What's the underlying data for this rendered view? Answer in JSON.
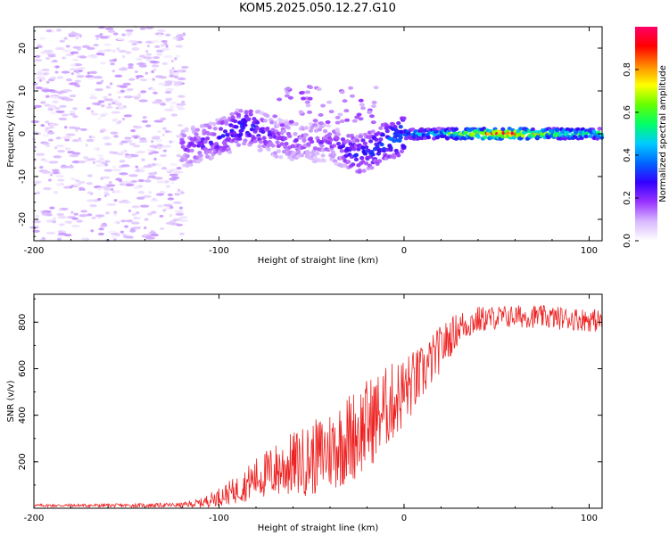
{
  "title": "KOM5.2025.050.12.27.G10",
  "chart_data": [
    {
      "type": "heatmap",
      "title": "KOM5.2025.050.12.27.G10",
      "xlabel": "Height of straight line (km)",
      "ylabel": "Frequency (Hz)",
      "xlim": [
        -200,
        107
      ],
      "ylim": [
        -25,
        25
      ],
      "x_ticks": [
        -200,
        -100,
        0,
        100
      ],
      "y_ticks": [
        -20,
        -10,
        0,
        10,
        20
      ],
      "colorbar": {
        "label": "Normalized spectral amplitude",
        "range": [
          0,
          1
        ],
        "ticks": [
          0.0,
          0.2,
          0.4,
          0.6,
          0.8
        ],
        "colormap": [
          "#ffffff",
          "#d8b8ff",
          "#9933ff",
          "#3300ff",
          "#0066ff",
          "#00ccff",
          "#00ff66",
          "#66ff00",
          "#ffff00",
          "#ff8800",
          "#ff0000",
          "#ff0066"
        ]
      },
      "ridge": [
        {
          "x": -115,
          "y": -3,
          "amp": 0.2
        },
        {
          "x": -100,
          "y": -1,
          "amp": 0.25
        },
        {
          "x": -85,
          "y": 2,
          "amp": 0.3
        },
        {
          "x": -70,
          "y": -1,
          "amp": 0.2
        },
        {
          "x": -55,
          "y": -2,
          "amp": 0.18
        },
        {
          "x": -40,
          "y": -2,
          "amp": 0.18
        },
        {
          "x": -25,
          "y": -5,
          "amp": 0.3
        },
        {
          "x": -10,
          "y": -2,
          "amp": 0.35
        },
        {
          "x": 0,
          "y": 0,
          "amp": 0.4
        },
        {
          "x": 20,
          "y": 0,
          "amp": 0.5
        },
        {
          "x": 40,
          "y": 0,
          "amp": 0.75
        },
        {
          "x": 55,
          "y": 0,
          "amp": 0.95
        },
        {
          "x": 70,
          "y": 0,
          "amp": 0.7
        },
        {
          "x": 85,
          "y": 0,
          "amp": 0.6
        },
        {
          "x": 100,
          "y": 0,
          "amp": 0.55
        }
      ]
    },
    {
      "type": "line",
      "xlabel": "Height of straight line (km)",
      "ylabel": "SNR (v/v)",
      "xlim": [
        -200,
        107
      ],
      "ylim": [
        0,
        920
      ],
      "x_ticks": [
        -200,
        -100,
        0,
        100
      ],
      "y_ticks": [
        200,
        400,
        600,
        800
      ],
      "line_color": "#ee2222",
      "envelope": {
        "x": [
          -200,
          -150,
          -120,
          -110,
          -100,
          -90,
          -80,
          -70,
          -60,
          -50,
          -40,
          -30,
          -20,
          -10,
          0,
          10,
          20,
          30,
          40,
          50,
          60,
          70,
          80,
          90,
          100,
          107
        ],
        "mean": [
          12,
          12,
          14,
          22,
          50,
          80,
          130,
          160,
          190,
          210,
          250,
          300,
          360,
          430,
          500,
          580,
          690,
          780,
          810,
          820,
          825,
          825,
          820,
          815,
          810,
          805
        ],
        "spread": [
          6,
          8,
          10,
          20,
          40,
          60,
          90,
          120,
          140,
          160,
          180,
          200,
          200,
          180,
          160,
          120,
          100,
          70,
          60,
          50,
          50,
          50,
          50,
          50,
          50,
          50
        ]
      }
    }
  ]
}
